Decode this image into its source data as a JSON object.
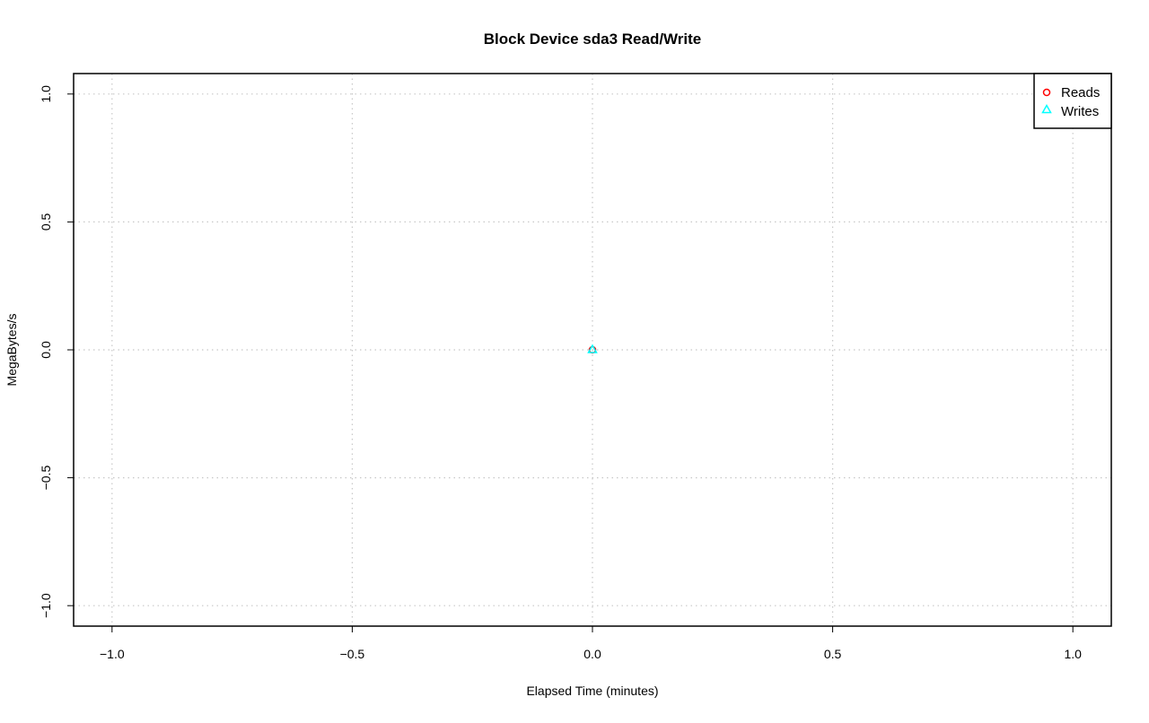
{
  "chart_data": {
    "type": "scatter",
    "title": "Block Device sda3 Read/Write",
    "xlabel": "Elapsed Time (minutes)",
    "ylabel": "MegaBytes/s",
    "xlim": [
      -1.08,
      1.08
    ],
    "ylim": [
      -1.08,
      1.08
    ],
    "xticks": [
      -1.0,
      -0.5,
      0.0,
      0.5,
      1.0
    ],
    "xtick_labels": [
      "−1.0",
      "−0.5",
      "0.0",
      "0.5",
      "1.0"
    ],
    "yticks": [
      -1.0,
      -0.5,
      0.0,
      0.5,
      1.0
    ],
    "ytick_labels": [
      "−1.0",
      "−0.5",
      "0.0",
      "0.5",
      "1.0"
    ],
    "grid": true,
    "legend_position": "top-right",
    "series": [
      {
        "name": "Reads",
        "marker": "circle",
        "color": "#ff0000",
        "x": [
          0
        ],
        "y": [
          0
        ]
      },
      {
        "name": "Writes",
        "marker": "triangle",
        "color": "#00ffff",
        "x": [
          0
        ],
        "y": [
          0
        ]
      }
    ]
  }
}
